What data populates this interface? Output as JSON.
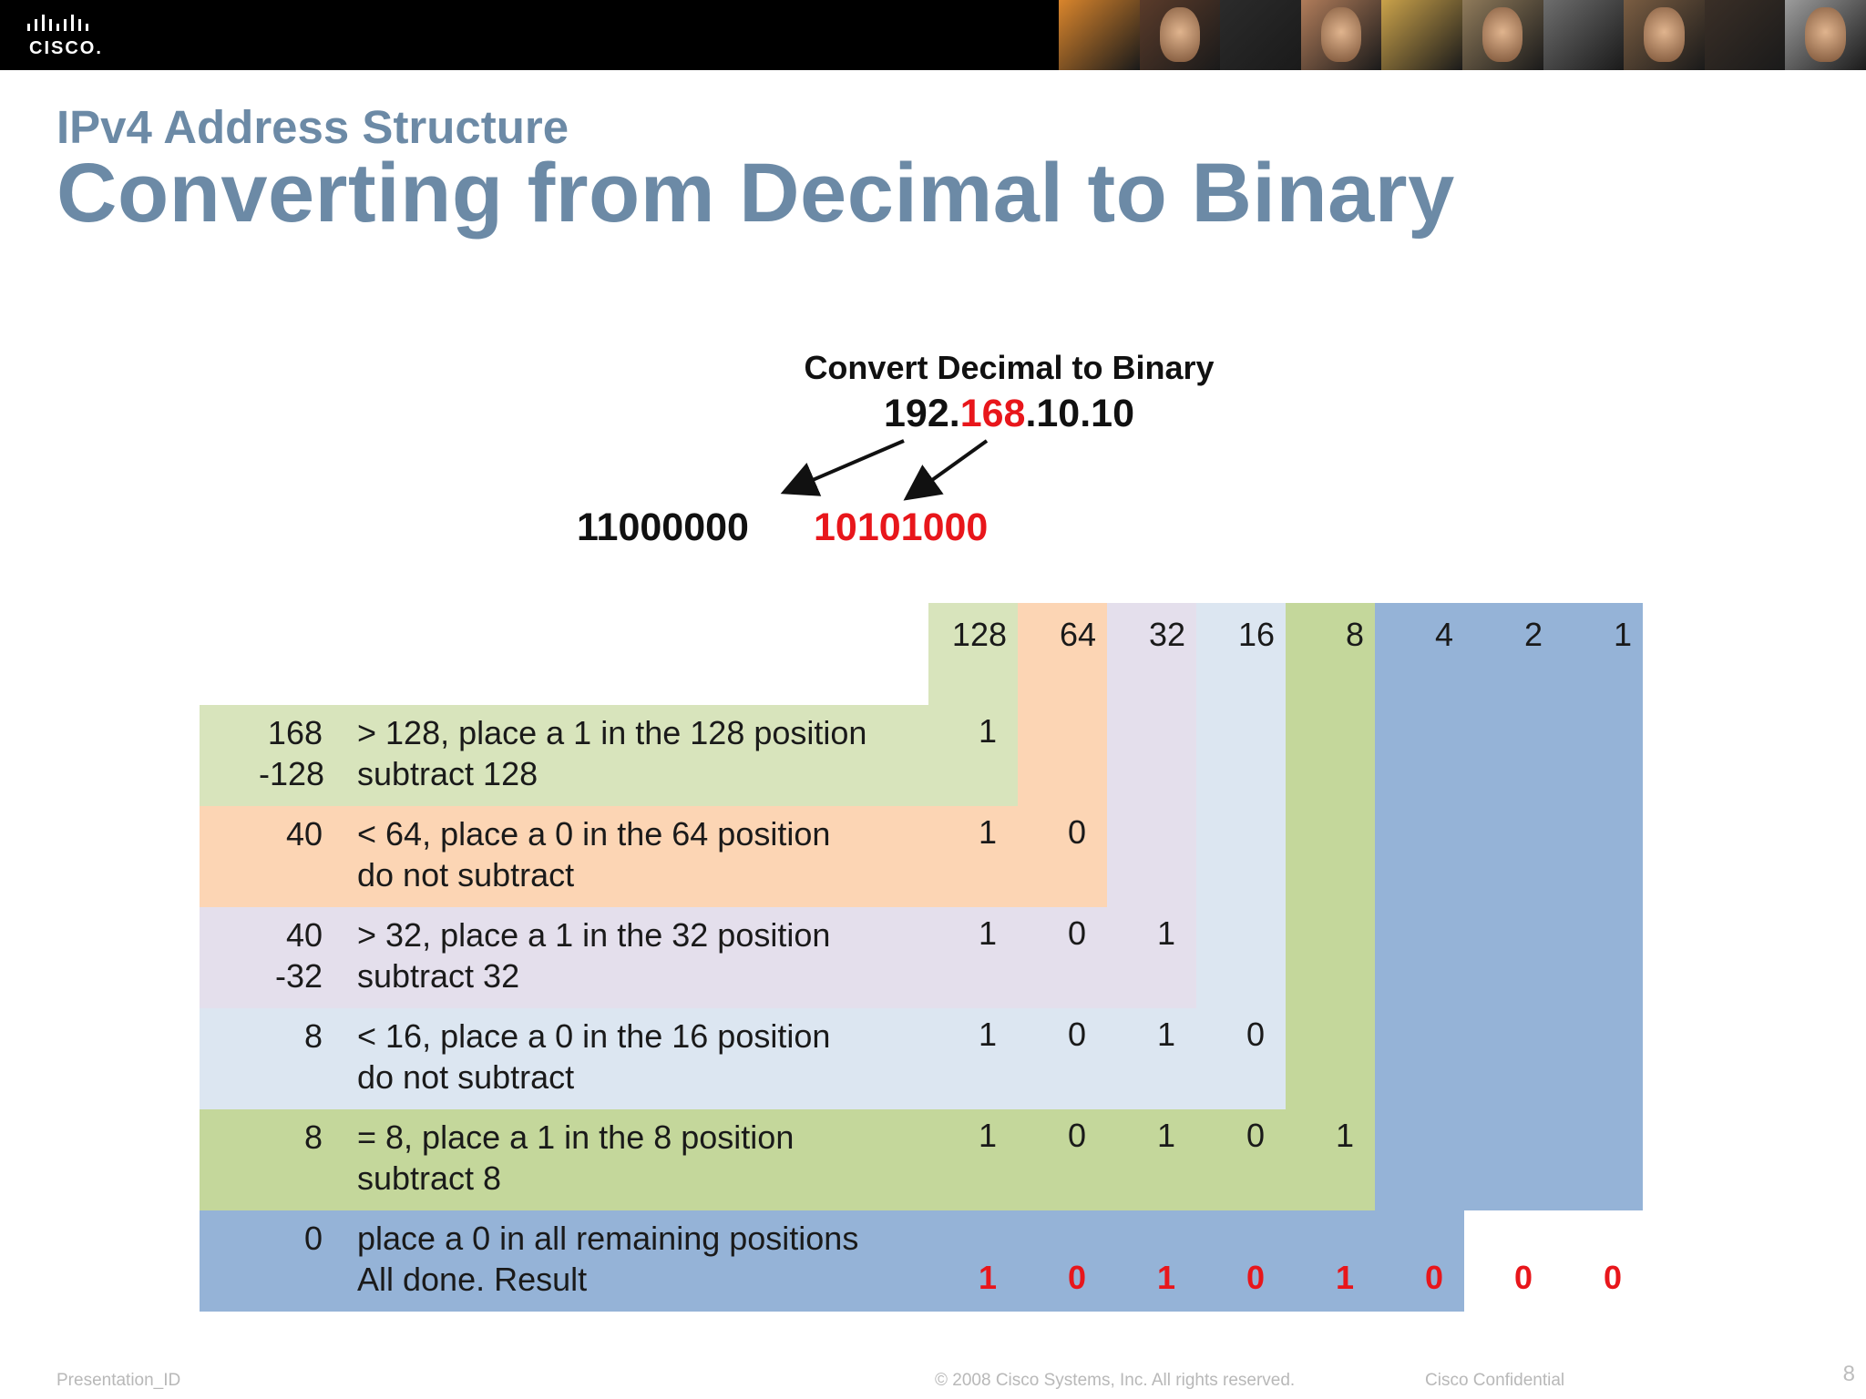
{
  "header": {
    "logo_text": "CISCO.",
    "photo_colors": [
      "#d9852c",
      "#5a3b2a",
      "#2b2b2b",
      "#b07c5a",
      "#caa24a",
      "#8f7a5a",
      "#6d6d6d",
      "#7a5d42",
      "#3a2f27",
      "#9c9c9c"
    ]
  },
  "slide": {
    "section_title": "IPv4 Address Structure",
    "title": "Converting from Decimal to Binary"
  },
  "diagram": {
    "heading": "Convert Decimal  to Binary",
    "ip_part1": "192.",
    "ip_highlight": "168",
    "ip_part2": ".10.10",
    "binary_first": "11000000",
    "binary_second": "10101000"
  },
  "table": {
    "place_values": [
      "128",
      "64",
      "32",
      "16",
      "8",
      "4",
      "2",
      "1"
    ],
    "column_colors": [
      "#d8e4bc",
      "#fcd5b4",
      "#e4dfec",
      "#dce6f1",
      "#c4d79b",
      "#95b3d7",
      "#95b3d7",
      "#95b3d7"
    ],
    "rows": [
      {
        "num1": "168",
        "num2": "-128",
        "line1": "> 128,  place a 1  in the  128 position",
        "line2": "subtract  128",
        "bits": [
          "1"
        ],
        "color": "#d8e4bc"
      },
      {
        "num1": "40",
        "num2": "",
        "line1": "< 64,  place a 0 in the 64 position",
        "line2": "do not subtract",
        "bits": [
          "1",
          "0"
        ],
        "color": "#fcd5b4"
      },
      {
        "num1": "40",
        "num2": "-32",
        "line1": "> 32,  place a 1 in the 32 position",
        "line2": "subtract 32",
        "bits": [
          "1",
          "0",
          "1"
        ],
        "color": "#e4dfec"
      },
      {
        "num1": "8",
        "num2": "",
        "line1": "< 16,  place a 0 in the 16 position",
        "line2": "do not subtract",
        "bits": [
          "1",
          "0",
          "1",
          "0"
        ],
        "color": "#dce6f1"
      },
      {
        "num1": "8",
        "num2": "",
        "line1": "= 8,  place a 1 in the 8 position",
        "line2": "subtract 8",
        "bits": [
          "1",
          "0",
          "1",
          "0",
          "1"
        ],
        "color": "#c4d79b"
      },
      {
        "num1": "0",
        "num2": "",
        "line1": "place a 0 in all remaining  positions",
        "line2": "All done.  Result",
        "bits": [
          "1",
          "0",
          "1",
          "0",
          "1",
          "0",
          "0",
          "0"
        ],
        "color": "#95b3d7"
      }
    ]
  },
  "footer": {
    "presentation_id": "Presentation_ID",
    "copyright": "© 2008 Cisco Systems, Inc. All rights reserved.",
    "confidential": "Cisco Confidential",
    "page_number": "8"
  }
}
